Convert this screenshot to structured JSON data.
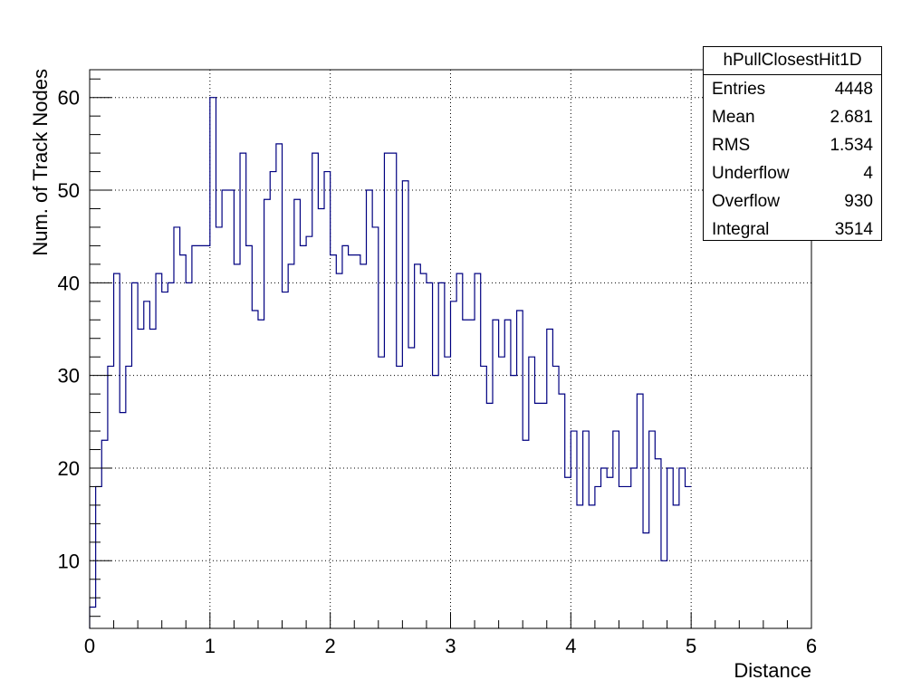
{
  "chart_data": {
    "type": "histogram",
    "xlabel": "Distance",
    "ylabel": "Num. of Track Nodes",
    "xlim": [
      0,
      6
    ],
    "ylim": [
      2.7,
      63
    ],
    "x_ticks": [
      "0",
      "1",
      "2",
      "3",
      "4",
      "5",
      "6"
    ],
    "y_ticks": [
      "10",
      "20",
      "30",
      "40",
      "50",
      "60"
    ],
    "y_tick_values": [
      10,
      20,
      30,
      40,
      50,
      60
    ],
    "grid": true,
    "line_color": "#000080",
    "bin_width": 0.05,
    "bin_start": 0,
    "values": [
      5,
      18,
      23,
      31,
      41,
      26,
      31,
      40,
      35,
      38,
      35,
      41,
      39,
      40,
      46,
      43,
      40,
      44,
      44,
      44,
      60,
      46,
      50,
      50,
      42,
      54,
      44,
      37,
      36,
      49,
      52,
      55,
      39,
      42,
      49,
      44,
      45,
      54,
      48,
      52,
      43,
      41,
      44,
      43,
      43,
      42,
      50,
      46,
      32,
      54,
      54,
      31,
      51,
      33,
      42,
      41,
      40,
      30,
      40,
      32,
      38,
      41,
      36,
      36,
      41,
      31,
      27,
      36,
      32,
      36,
      30,
      37,
      23,
      32,
      27,
      27,
      35,
      31,
      28,
      19,
      24,
      16,
      24,
      16,
      18,
      20,
      19,
      24,
      18,
      18,
      20,
      28,
      13,
      24,
      21,
      10,
      20,
      16,
      20,
      18
    ]
  },
  "stats": {
    "title": "hPullClosestHit1D",
    "rows": [
      {
        "label": "Entries",
        "value": "4448"
      },
      {
        "label": "Mean",
        "value": "2.681"
      },
      {
        "label": "RMS",
        "value": "1.534"
      },
      {
        "label": "Underflow",
        "value": "4"
      },
      {
        "label": "Overflow",
        "value": "930"
      },
      {
        "label": "Integral",
        "value": "3514"
      }
    ]
  }
}
